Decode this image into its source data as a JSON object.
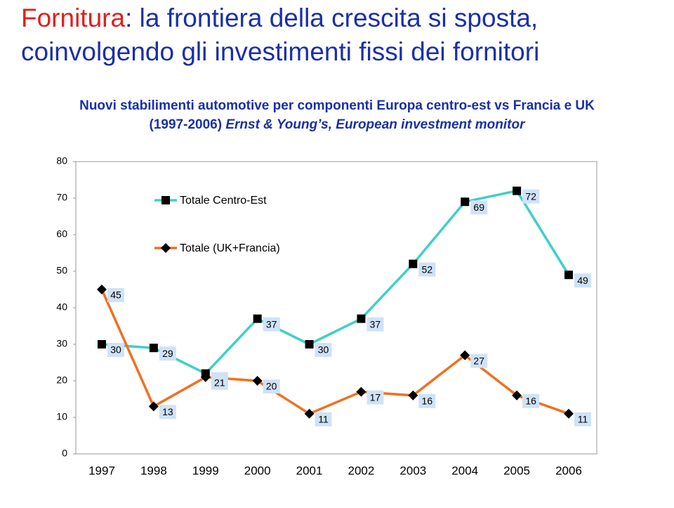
{
  "chart_data": {
    "type": "line",
    "title_parts": [
      "Fornitura",
      ": la frontiera della crescita si sposta,",
      "coinvolgendo gli investimenti fissi dei fornitori"
    ],
    "subtitle_parts": [
      "Nuovi stabilimenti automotive per componenti Europa centro-est vs Francia e UK",
      "(1997-2006)",
      "Ernst & Young’s, European investment monitor"
    ],
    "categories": [
      "1997",
      "1998",
      "1999",
      "2000",
      "2001",
      "2002",
      "2003",
      "2004",
      "2005",
      "2006"
    ],
    "series": [
      {
        "name": "Totale Centro-Est",
        "color": "#3fd0c6",
        "marker": "square",
        "values": [
          30,
          29,
          22,
          37,
          30,
          37,
          52,
          69,
          72,
          49
        ]
      },
      {
        "name": "Totale (UK+Francia)",
        "color": "#f07022",
        "marker": "diamond",
        "values": [
          45,
          13,
          21,
          20,
          11,
          17,
          16,
          27,
          16,
          11
        ]
      }
    ],
    "ylim": [
      0,
      80
    ],
    "yticks": [
      0,
      10,
      20,
      30,
      40,
      50,
      60,
      70,
      80
    ],
    "grid": false,
    "legend": "upper-left"
  }
}
